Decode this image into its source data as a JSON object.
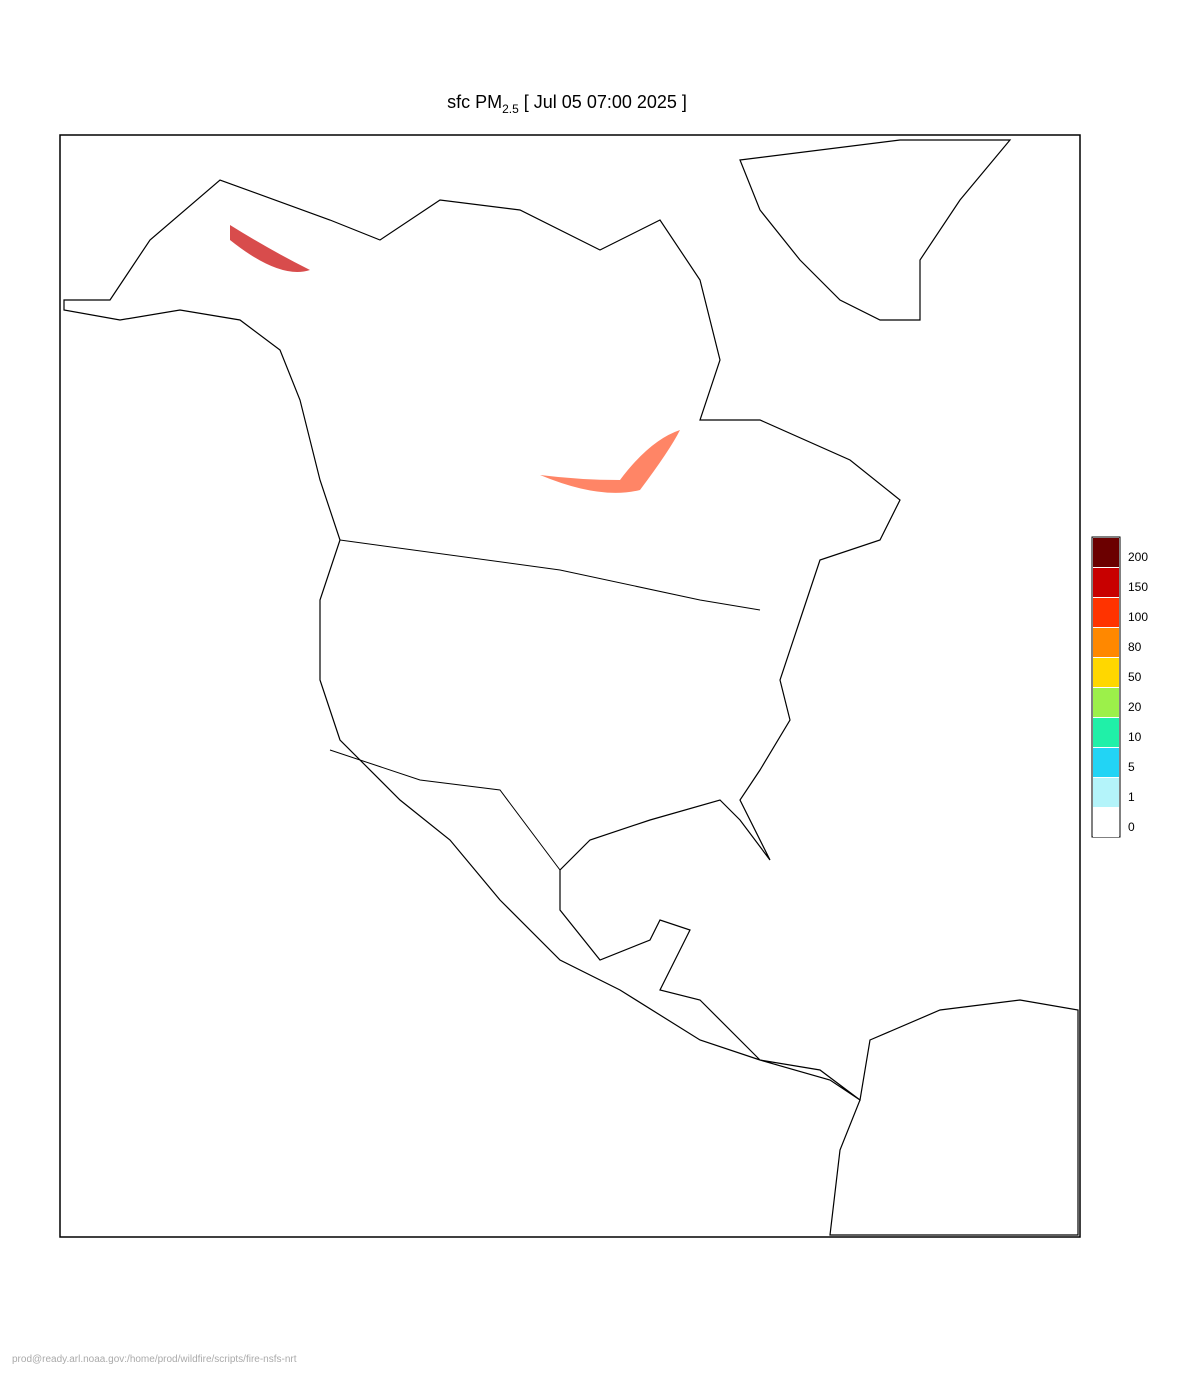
{
  "header": {
    "title": "sfc PM",
    "title_subscript": "2.5",
    "title_rest": "[ Jul 05 07:00 2025 ]"
  },
  "legend": {
    "levels": [
      {
        "label": "200",
        "color": "#6b0000"
      },
      {
        "label": "150",
        "color": "#c80000"
      },
      {
        "label": "100",
        "color": "#ff3300"
      },
      {
        "label": "80",
        "color": "#ff8800"
      },
      {
        "label": "50",
        "color": "#ffd700"
      },
      {
        "label": "20",
        "color": "#9cf04a"
      },
      {
        "label": "10",
        "color": "#20f0a8"
      },
      {
        "label": "5",
        "color": "#22d4f5"
      },
      {
        "label": "1",
        "color": "#b4f4fa"
      },
      {
        "label": "0",
        "color": "#ffffff"
      }
    ]
  },
  "footer": {
    "text": "prod@ready.arl.noaa.gov:/home/prod/wildfire/scripts/fire-nsfs-nrt"
  }
}
